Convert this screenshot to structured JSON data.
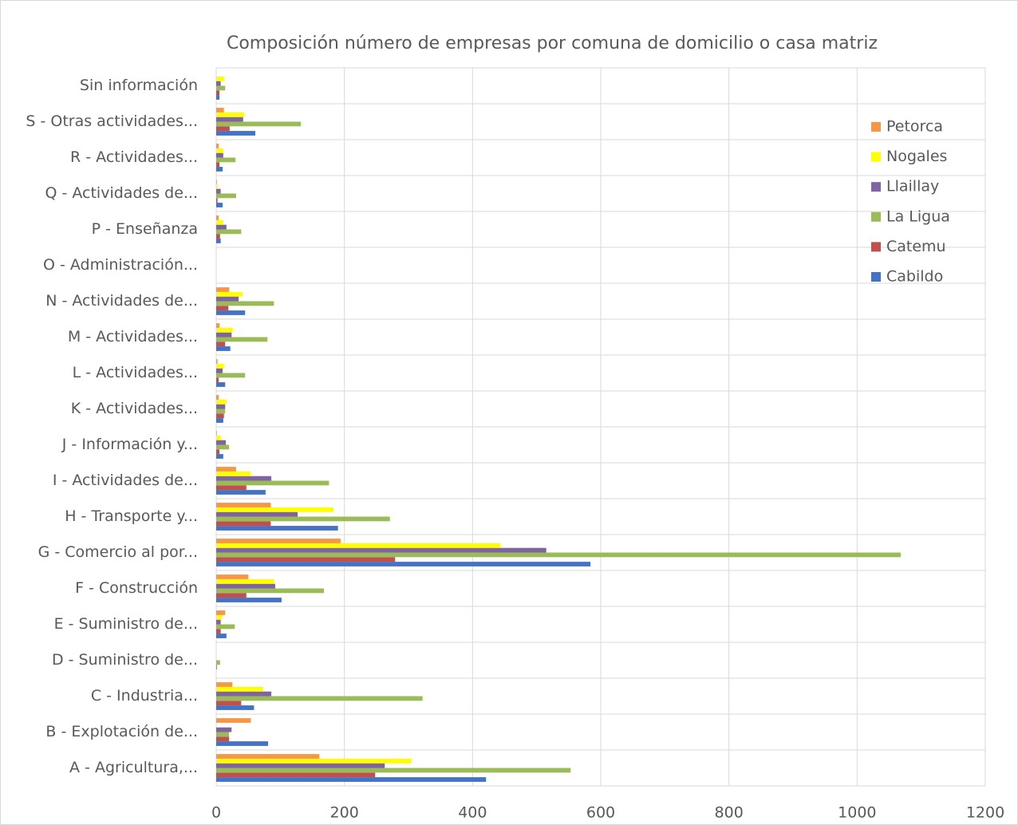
{
  "chart_data": {
    "type": "barh",
    "title": "Composición número de empresas por comuna de domicilio o casa matriz",
    "categories": [
      "A - Agricultura,...",
      "B - Explotación de...",
      "C - Industria...",
      "D - Suministro de...",
      "E - Suministro de...",
      "F - Construcción",
      "G - Comercio al por...",
      "H - Transporte y...",
      "I - Actividades de...",
      "J - Información y...",
      "K - Actividades...",
      "L - Actividades...",
      "M - Actividades...",
      "N - Actividades de...",
      "O - Administración...",
      "P - Enseñanza",
      "Q - Actividades de...",
      "R - Actividades...",
      "S - Otras actividades...",
      "Sin información"
    ],
    "series": [
      {
        "name": "Cabildo",
        "color": "#4472c4",
        "values": [
          421,
          81,
          59,
          0,
          16,
          102,
          584,
          190,
          77,
          11,
          11,
          14,
          22,
          45,
          0,
          7,
          10,
          10,
          61,
          5
        ]
      },
      {
        "name": "Catemu",
        "color": "#c0504d",
        "values": [
          248,
          20,
          39,
          1,
          7,
          47,
          279,
          85,
          47,
          5,
          12,
          4,
          14,
          19,
          0,
          6,
          2,
          5,
          21,
          5
        ]
      },
      {
        "name": "La Ligua",
        "color": "#9bbb59",
        "values": [
          553,
          20,
          322,
          6,
          29,
          168,
          1068,
          271,
          176,
          20,
          14,
          45,
          80,
          90,
          0,
          39,
          31,
          30,
          132,
          14
        ]
      },
      {
        "name": "Llaillay",
        "color": "#8064a2",
        "values": [
          263,
          24,
          86,
          0,
          7,
          92,
          515,
          127,
          86,
          15,
          14,
          10,
          24,
          35,
          0,
          16,
          7,
          11,
          42,
          7
        ]
      },
      {
        "name": "Nogales",
        "color": "#ffff00",
        "values": [
          304,
          0,
          73,
          0,
          9,
          90,
          443,
          183,
          54,
          7,
          16,
          12,
          25,
          41,
          0,
          11,
          2,
          11,
          44,
          12
        ]
      },
      {
        "name": "Petorca",
        "color": "#f79646",
        "values": [
          161,
          54,
          25,
          0,
          14,
          50,
          194,
          85,
          31,
          1,
          4,
          2,
          5,
          20,
          0,
          4,
          1,
          4,
          12,
          0
        ]
      }
    ],
    "xlim": [
      0,
      1200
    ],
    "xticks": [
      0,
      200,
      400,
      600,
      800,
      1000,
      1200
    ],
    "grid": true,
    "legend": "right"
  }
}
